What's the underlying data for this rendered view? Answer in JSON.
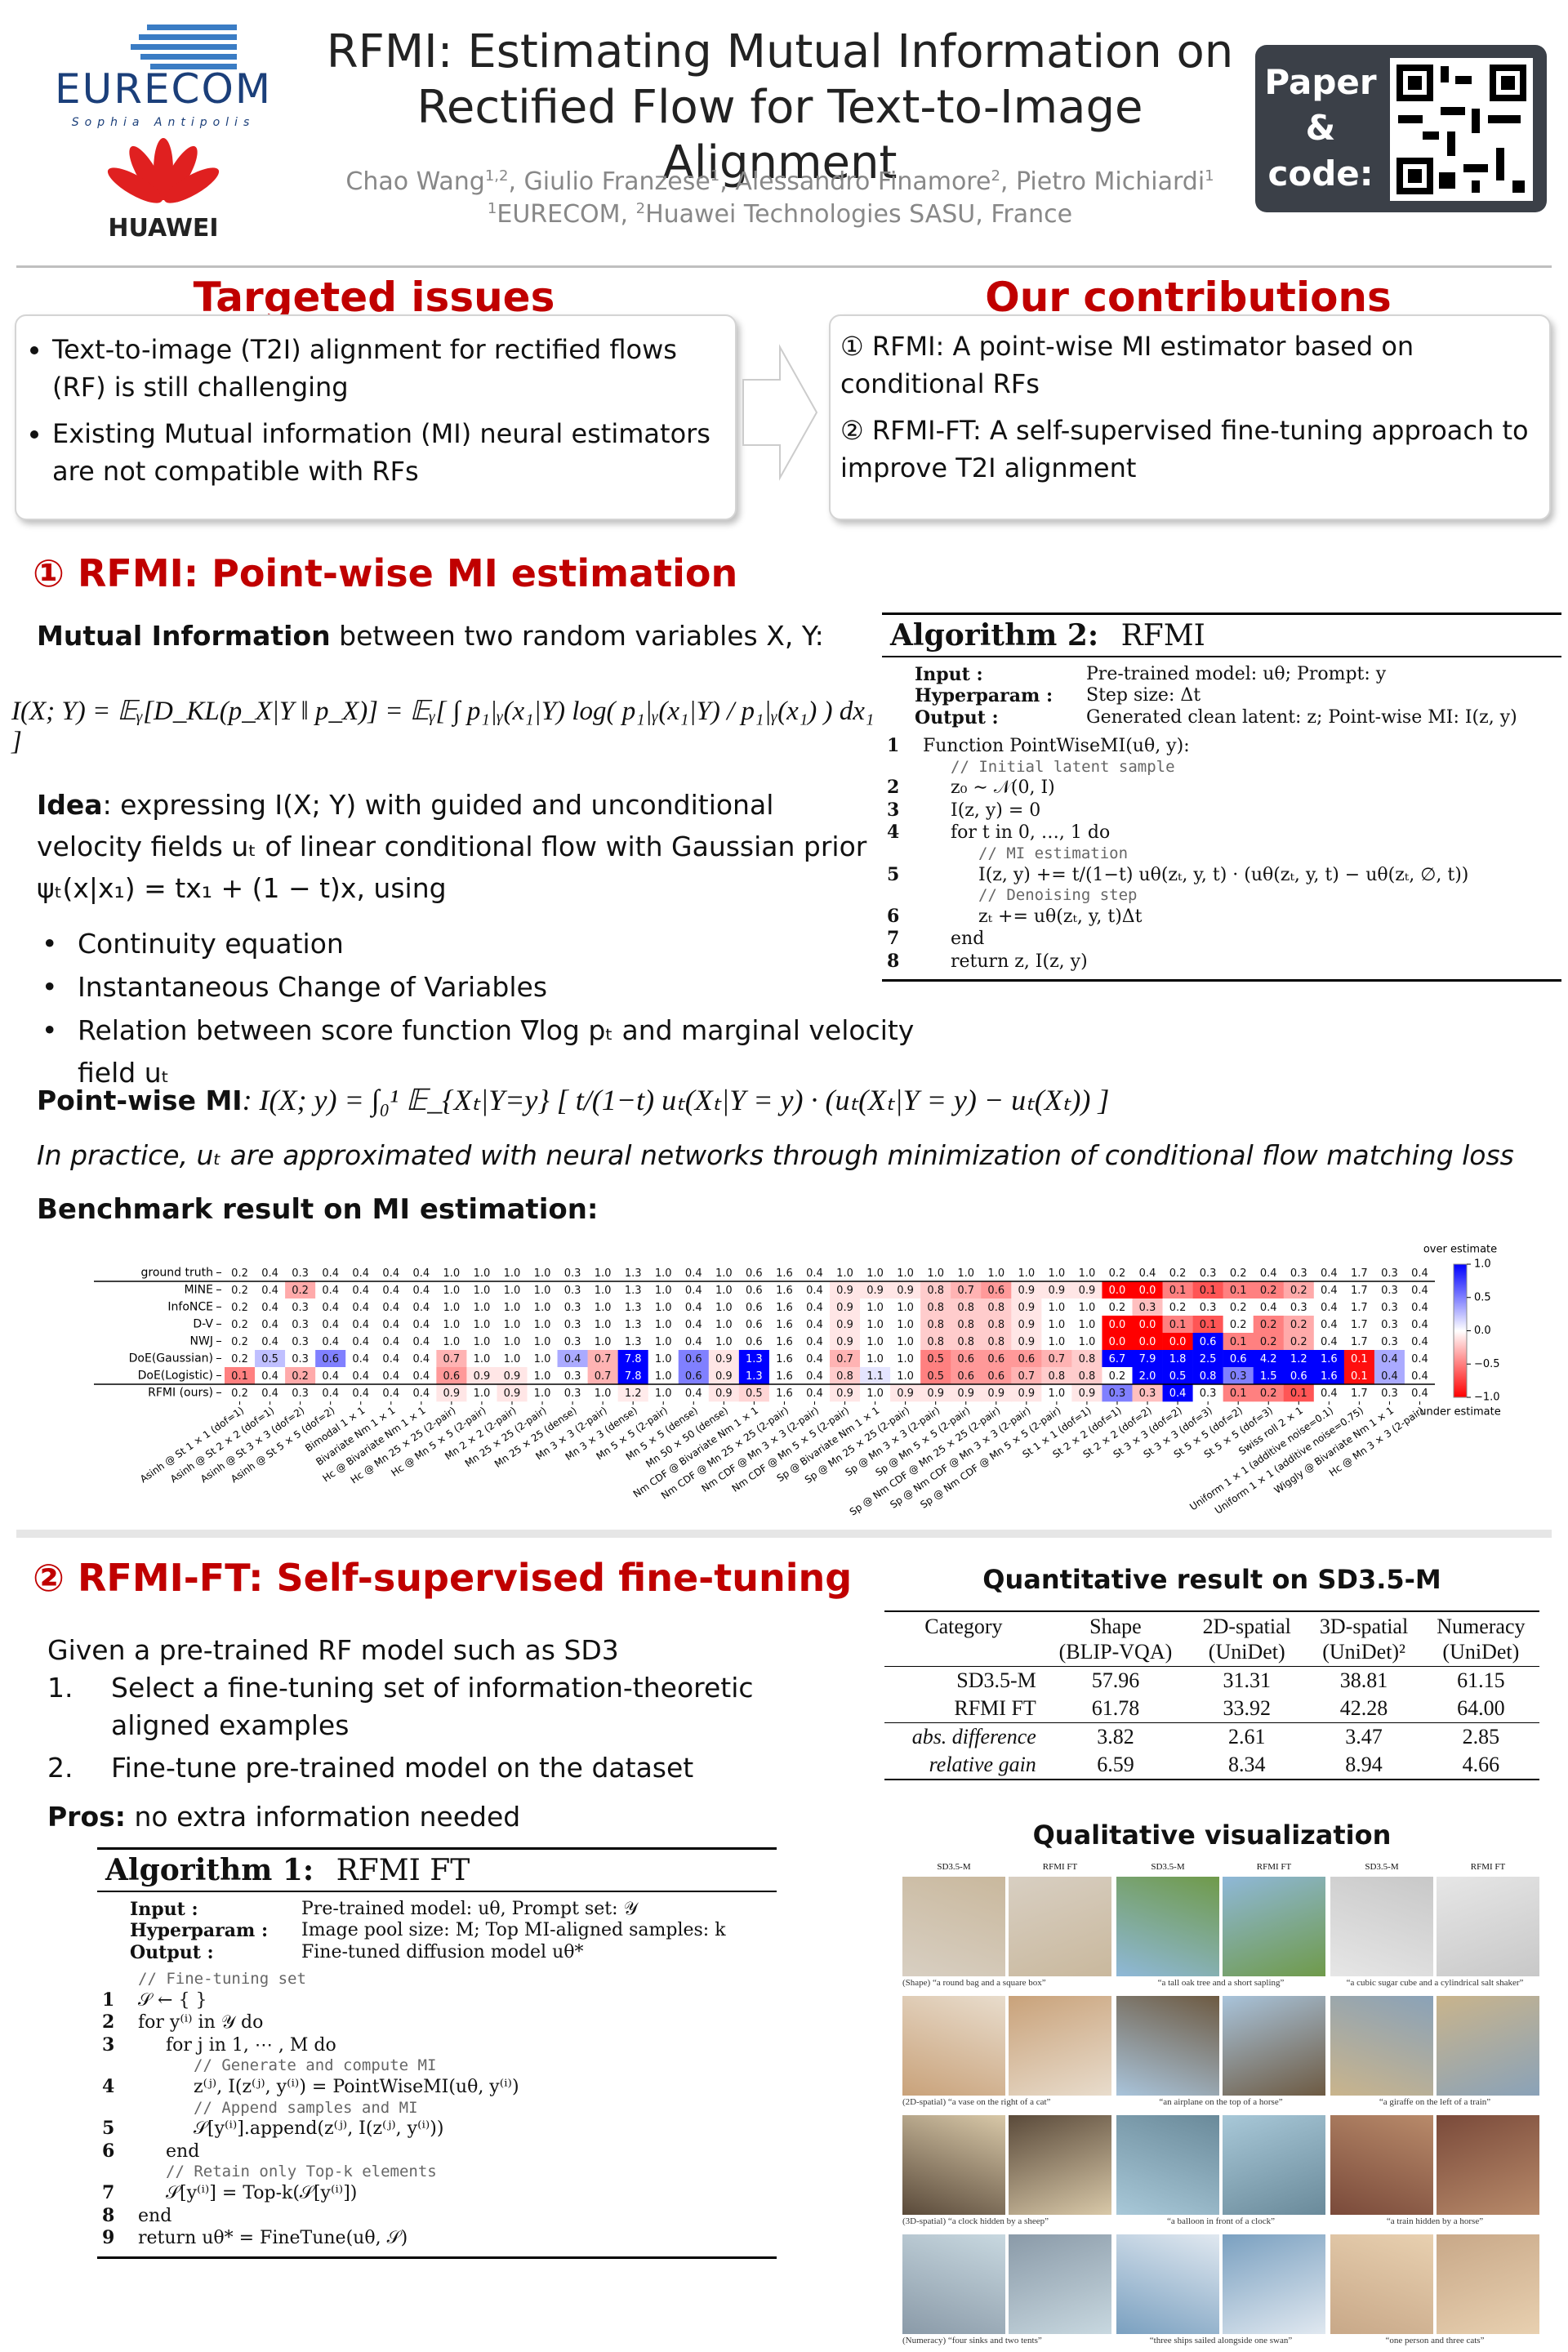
{
  "header": {
    "title_line1": "RFMI: Estimating Mutual Information on",
    "title_line2": "Rectified Flow for Text-to-Image Alignment",
    "logo1": "EURECOM",
    "logo1_sub": "Sophia Antipolis",
    "logo2": "HUAWEI",
    "authors": [
      {
        "name": "Chao Wang",
        "sup": "1,2"
      },
      {
        "name": "Giulio Franzese",
        "sup": "1"
      },
      {
        "name": "Alessandro Finamore",
        "sup": "2"
      },
      {
        "name": "Pietro Michiardi",
        "sup": "1"
      }
    ],
    "affiliations": [
      {
        "sup": "1",
        "name": "EURECOM"
      },
      {
        "sup": "2",
        "name": "Huawei Technologies SASU, France"
      }
    ],
    "qr_label": [
      "Paper",
      "&",
      "code:"
    ]
  },
  "targeted_issues": {
    "title": "Targeted issues",
    "items": [
      "Text-to-image (T2I) alignment for rectified flows (RF) is still challenging",
      "Existing Mutual information (MI) neural estimators are not compatible with RFs"
    ]
  },
  "contributions": {
    "title": "Our contributions",
    "items": [
      {
        "marker": "①",
        "text": "RFMI: A point-wise MI estimator based on conditional RFs"
      },
      {
        "marker": "②",
        "text": "RFMI-FT: A self-supervised fine-tuning approach to improve T2I alignment"
      }
    ]
  },
  "section1": {
    "marker": "①",
    "title": "RFMI: Point-wise MI estimation",
    "mi_def": {
      "bold": "Mutual Information",
      "text": " between two random variables X, Y:"
    },
    "equation": "I(X; Y) = 𝔼ᵧ[D_KL(p_X|Y ‖ p_X)] = 𝔼ᵧ[ ∫ p₁|ᵧ(x₁|Y) log( p₁|ᵧ(x₁|Y) / p₁|ᵧ(x₁) ) dx₁ ]",
    "idea": {
      "bold": "Idea",
      "text": ": expressing I(X; Y) with guided and unconditional velocity fields uₜ of linear conditional flow with Gaussian prior ψₜ(x|x₁) = tx₁ + (1 − t)x, using"
    },
    "bullets": [
      "Continuity equation",
      "Instantaneous Change of Variables",
      "Relation between score function ∇log pₜ and marginal velocity field uₜ"
    ],
    "pointwise": {
      "bold": "Point-wise MI",
      "text": ": I(X; y) = ∫₀¹ 𝔼_{Xₜ|Y=y} [ t/(1−t) uₜ(Xₜ|Y = y) · (uₜ(Xₜ|Y = y) − uₜ(Xₜ)) ]"
    },
    "practice": "In practice, uₜ are approximated with neural networks through minimization of conditional flow matching loss",
    "benchmark_title": "Benchmark result on MI estimation:"
  },
  "algorithm2": {
    "label": "Algorithm 2:",
    "name": "RFMI",
    "io": [
      {
        "key": "Input",
        "text": "Pre-trained model: uθ; Prompt: y"
      },
      {
        "key": "Hyperparam",
        "text": "Step size: Δt"
      },
      {
        "key": "Output",
        "text": "Generated clean latent: z; Point-wise MI: I(z, y)"
      }
    ],
    "lines": [
      {
        "n": "1",
        "text": "Function PointWiseMI(uθ, y):"
      },
      {
        "comment": "// Initial latent sample"
      },
      {
        "n": "2",
        "text": "z₀ ∼ 𝒩(0, I)"
      },
      {
        "n": "3",
        "text": "I(z, y) = 0"
      },
      {
        "n": "4",
        "text": "for t in 0, …, 1 do"
      },
      {
        "comment": "// MI estimation"
      },
      {
        "n": "5",
        "text": "I(z, y) += t/(1−t) uθ(zₜ, y, t) · (uθ(zₜ, y, t) − uθ(zₜ, ∅, t))"
      },
      {
        "comment": "// Denoising step"
      },
      {
        "n": "6",
        "text": "zₜ += uθ(zₜ, y, t)Δt"
      },
      {
        "n": "7",
        "text": "end"
      },
      {
        "n": "8",
        "text": "return z, I(z, y)"
      }
    ]
  },
  "chart_data": {
    "type": "heatmap",
    "categories": [
      "Asinh @ St 1 × 1 (dof=1)",
      "Asinh @ St 2 × 2 (dof=1)",
      "Asinh @ St 3 × 3 (dof=2)",
      "Asinh @ St 5 × 5 (dof=2)",
      "Bimodal 1 × 1",
      "Bivariate Nm 1 × 1",
      "Hc @ Bivariate Nm 1 × 1",
      "Hc @ Mn 25 × 25 (2-pair)",
      "Hc @ Mn 5 × 5 (2-pair)",
      "Mn 2 × 2 (2-pair)",
      "Mn 25 × 25 (2-pair)",
      "Mn 25 × 25 (dense)",
      "Mn 3 × 3 (2-pair)",
      "Mn 3 × 3 (dense)",
      "Mn 5 × 5 (2-pair)",
      "Mn 5 × 5 (dense)",
      "Mn 50 × 50 (dense)",
      "Nm CDF @ Bivariate Nm 1 × 1",
      "Nm CDF @ Mn 25 × 25 (2-pair)",
      "Nm CDF @ Mn 3 × 3 (2-pair)",
      "Nm CDF @ Mn 5 × 5 (2-pair)",
      "Sp @ Bivariate Nm 1 × 1",
      "Sp @ Mn 25 × 25 (2-pair)",
      "Sp @ Mn 3 × 3 (2-pair)",
      "Sp @ Mn 5 × 5 (2-pair)",
      "Sp @ Nm CDF @ Mn 25 × 25 (2-pair)",
      "Sp @ Nm CDF @ Mn 3 × 3 (2-pair)",
      "Sp @ Nm CDF @ Mn 5 × 5 (2-pair)",
      "St 1 × 1 (dof=1)",
      "St 2 × 2 (dof=1)",
      "St 2 × 2 (dof=2)",
      "St 3 × 3 (dof=2)",
      "St 3 × 3 (dof=3)",
      "St 5 × 5 (dof=2)",
      "St 5 × 5 (dof=3)",
      "Swiss roll 2 × 1",
      "Uniform 1 × 1 (additive noise=0.1)",
      "Uniform 1 × 1 (additive noise=0.75)",
      "Wiggly @ Bivariate Nm 1 × 1",
      "Hc @ Mn 3 × 3 (2-pair)"
    ],
    "series": [
      {
        "name": "ground truth",
        "values": [
          0.2,
          0.4,
          0.3,
          0.4,
          0.4,
          0.4,
          0.4,
          1.0,
          1.0,
          1.0,
          1.0,
          0.3,
          1.0,
          1.3,
          1.0,
          0.4,
          1.0,
          0.6,
          1.6,
          0.4,
          1.0,
          1.0,
          1.0,
          1.0,
          1.0,
          1.0,
          1.0,
          1.0,
          1.0,
          0.2,
          0.4,
          0.2,
          0.3,
          0.2,
          0.4,
          0.3,
          0.4,
          1.7,
          0.3,
          0.4
        ],
        "value_labels": [
          "0.2",
          "0.4",
          "0.3",
          "0.4",
          "0.4",
          "0.4",
          "0.4",
          "1.0",
          "1.0",
          "1.0",
          "1.0",
          "0.3",
          "1.0",
          "1.3",
          "1.0",
          "0.4",
          "1.0",
          "0.6",
          "1.6",
          "0.4",
          "1.0",
          "1.0",
          "1.0",
          "1.0",
          "1.0",
          "1.0",
          "1.0",
          "1.0",
          "1.0",
          "0.2",
          "0.4",
          "0.2",
          "0.3",
          "0.2",
          "0.4",
          "0.3",
          "0.4",
          "1.7",
          "0.3",
          "0.4"
        ]
      },
      {
        "name": "MINE",
        "values": [
          0.2,
          0.4,
          0.2,
          0.4,
          0.4,
          0.4,
          0.4,
          1.0,
          1.0,
          1.0,
          1.0,
          0.3,
          1.0,
          1.3,
          1.0,
          0.4,
          1.0,
          0.6,
          1.6,
          0.4,
          0.9,
          0.9,
          0.9,
          0.8,
          0.7,
          0.6,
          0.9,
          0.9,
          0.9,
          0.0,
          0.0,
          0.1,
          0.1,
          0.1,
          0.2,
          0.2,
          0.4,
          1.7,
          0.3,
          0.4
        ],
        "value_labels": [
          "0.2",
          "0.4",
          "0.2",
          "0.4",
          "0.4",
          "0.4",
          "0.4",
          "1.0",
          "1.0",
          "1.0",
          "1.0",
          "0.3",
          "1.0",
          "1.3",
          "1.0",
          "0.4",
          "1.0",
          "0.6",
          "1.6",
          "0.4",
          "0.9",
          "0.9",
          "0.9",
          "0.8",
          "0.7",
          "0.6",
          "0.9",
          "0.9",
          "0.9",
          "0.0",
          "0.0",
          "0.1",
          "0.1",
          "0.1",
          "0.2",
          "0.2",
          "0.4",
          "1.7",
          "0.3",
          "0.4"
        ]
      },
      {
        "name": "InfoNCE",
        "values": [
          0.2,
          0.4,
          0.3,
          0.4,
          0.4,
          0.4,
          0.4,
          1.0,
          1.0,
          1.0,
          1.0,
          0.3,
          1.0,
          1.3,
          1.0,
          0.4,
          1.0,
          0.6,
          1.6,
          0.4,
          0.9,
          1.0,
          1.0,
          0.8,
          0.8,
          0.8,
          0.9,
          1.0,
          1.0,
          0.2,
          0.3,
          0.2,
          0.3,
          0.2,
          0.4,
          0.3,
          0.4,
          1.7,
          0.3,
          0.4
        ],
        "value_labels": [
          "0.2",
          "0.4",
          "0.3",
          "0.4",
          "0.4",
          "0.4",
          "0.4",
          "1.0",
          "1.0",
          "1.0",
          "1.0",
          "0.3",
          "1.0",
          "1.3",
          "1.0",
          "0.4",
          "1.0",
          "0.6",
          "1.6",
          "0.4",
          "0.9",
          "1.0",
          "1.0",
          "0.8",
          "0.8",
          "0.8",
          "0.9",
          "1.0",
          "1.0",
          "0.2",
          "0.3",
          "0.2",
          "0.3",
          "0.2",
          "0.4",
          "0.3",
          "0.4",
          "1.7",
          "0.3",
          "0.4"
        ]
      },
      {
        "name": "D-V",
        "values": [
          0.2,
          0.4,
          0.3,
          0.4,
          0.4,
          0.4,
          0.4,
          1.0,
          1.0,
          1.0,
          1.0,
          0.3,
          1.0,
          1.3,
          1.0,
          0.4,
          1.0,
          0.6,
          1.6,
          0.4,
          0.9,
          1.0,
          1.0,
          0.8,
          0.8,
          0.8,
          0.9,
          1.0,
          1.0,
          0.0,
          0.0,
          0.1,
          0.1,
          0.2,
          0.2,
          0.2,
          0.4,
          1.7,
          0.3,
          0.4
        ],
        "value_labels": [
          "0.2",
          "0.4",
          "0.3",
          "0.4",
          "0.4",
          "0.4",
          "0.4",
          "1.0",
          "1.0",
          "1.0",
          "1.0",
          "0.3",
          "1.0",
          "1.3",
          "1.0",
          "0.4",
          "1.0",
          "0.6",
          "1.6",
          "0.4",
          "0.9",
          "1.0",
          "1.0",
          "0.8",
          "0.8",
          "0.8",
          "0.9",
          "1.0",
          "1.0",
          "0.0",
          "0.0",
          "0.1",
          "0.1",
          "0.2",
          "0.2",
          "0.2",
          "0.4",
          "1.7",
          "0.3",
          "0.4"
        ]
      },
      {
        "name": "NWJ",
        "values": [
          0.2,
          0.4,
          0.3,
          0.4,
          0.4,
          0.4,
          0.4,
          1.0,
          1.0,
          1.0,
          1.0,
          0.3,
          1.0,
          1.3,
          1.0,
          0.4,
          1.0,
          0.6,
          1.6,
          0.4,
          0.9,
          1.0,
          1.0,
          0.8,
          0.8,
          0.8,
          0.9,
          1.0,
          1.0,
          0.0,
          0.0,
          0.0,
          0.6,
          0.1,
          0.2,
          0.2,
          0.4,
          1.7,
          0.3,
          0.4
        ],
        "value_labels": [
          "0.2",
          "0.4",
          "0.3",
          "0.4",
          "0.4",
          "0.4",
          "0.4",
          "1.0",
          "1.0",
          "1.0",
          "1.0",
          "0.3",
          "1.0",
          "1.3",
          "1.0",
          "0.4",
          "1.0",
          "0.6",
          "1.6",
          "0.4",
          "0.9",
          "1.0",
          "1.0",
          "0.8",
          "0.8",
          "0.8",
          "0.9",
          "1.0",
          "1.0",
          "0.0",
          "0.0",
          "0.0",
          "0.6",
          "0.1",
          "0.2",
          "0.2",
          "0.4",
          "1.7",
          "0.3",
          "0.4"
        ]
      },
      {
        "name": "DoE(Gaussian)",
        "values": [
          0.2,
          0.5,
          0.3,
          0.6,
          0.4,
          0.4,
          0.4,
          0.7,
          1.0,
          1.0,
          1.0,
          0.4,
          0.7,
          7.8,
          1.0,
          0.6,
          0.9,
          1.3,
          1.6,
          0.4,
          0.7,
          1.0,
          1.0,
          0.5,
          0.6,
          0.6,
          0.6,
          0.7,
          0.8,
          6.7,
          7.9,
          1.8,
          2.5,
          0.6,
          4.2,
          1.2,
          1.6,
          0.1,
          0.4,
          0.4
        ],
        "value_labels": [
          "0.2",
          "0.5",
          "0.3",
          "0.6",
          "0.4",
          "0.4",
          "0.4",
          "0.7",
          "1.0",
          "1.0",
          "1.0",
          "0.4",
          "0.7",
          "7.8",
          "1.0",
          "0.6",
          "0.9",
          "1.3",
          "1.6",
          "0.4",
          "0.7",
          "1.0",
          "1.0",
          "0.5",
          "0.6",
          "0.6",
          "0.6",
          "0.7",
          "0.8",
          "6.7",
          "7.9",
          "1.8",
          "2.5",
          "0.6",
          "4.2",
          "1.2",
          "1.6",
          "0.1",
          "0.4",
          "0.4"
        ]
      },
      {
        "name": "DoE(Logistic)",
        "values": [
          0.1,
          0.4,
          0.2,
          0.4,
          0.4,
          0.4,
          0.4,
          0.6,
          0.9,
          0.9,
          1.0,
          0.3,
          0.7,
          7.8,
          1.0,
          0.6,
          0.9,
          1.3,
          1.6,
          0.4,
          0.8,
          1.1,
          1.0,
          0.5,
          0.6,
          0.6,
          0.7,
          0.8,
          0.8,
          0.2,
          2.0,
          0.5,
          0.8,
          0.3,
          1.5,
          0.6,
          1.6,
          0.1,
          0.4,
          0.4
        ],
        "value_labels": [
          "0.1",
          "0.4",
          "0.2",
          "0.4",
          "0.4",
          "0.4",
          "0.4",
          "0.6",
          "0.9",
          "0.9",
          "1.0",
          "0.3",
          "0.7",
          "7.8",
          "1.0",
          "0.6",
          "0.9",
          "1.3",
          "1.6",
          "0.4",
          "0.8",
          "1.1",
          "1.0",
          "0.5",
          "0.6",
          "0.6",
          "0.7",
          "0.8",
          "0.8",
          "0.2",
          "2.0",
          "0.5",
          "0.8",
          "0.3",
          "1.5",
          "0.6",
          "1.6",
          "0.1",
          "0.4",
          "0.4"
        ]
      },
      {
        "name": "RFMI (ours)",
        "values": [
          0.2,
          0.4,
          0.3,
          0.4,
          0.4,
          0.4,
          0.4,
          0.9,
          1.0,
          0.9,
          1.0,
          0.3,
          1.0,
          1.2,
          1.0,
          0.4,
          0.9,
          0.5,
          1.6,
          0.4,
          0.9,
          1.0,
          0.9,
          0.9,
          0.9,
          0.9,
          0.9,
          1.0,
          0.9,
          0.3,
          0.3,
          0.4,
          0.3,
          0.1,
          0.2,
          0.1,
          0.4,
          1.7,
          0.3,
          0.4
        ],
        "value_labels": [
          "0.2",
          "0.4",
          "0.3",
          "0.4",
          "0.4",
          "0.4",
          "0.4",
          "0.9",
          "1.0",
          "0.9",
          "1.0",
          "0.3",
          "1.0",
          "1.2",
          "1.0",
          "0.4",
          "0.9",
          "0.5",
          "1.6",
          "0.4",
          "0.9",
          "1.0",
          "0.9",
          "0.9",
          "0.9",
          "0.9",
          "0.9",
          "1.0",
          "0.9",
          "0.3",
          "0.3",
          "0.4",
          "0.3",
          "0.1",
          "0.2",
          "0.1",
          "0.4",
          "1.7",
          "0.3",
          "0.4"
        ]
      }
    ],
    "colors": {
      "over": "#0000ff",
      "center": "#ffffff",
      "under": "#ff0000"
    },
    "clim": [
      -1,
      1
    ],
    "cticks": [
      {
        "value": 1,
        "label": "1.0"
      },
      0.5,
      {
        "value": 0,
        "label": "0.0"
      },
      {
        "value": -0.5,
        "label": "−0.5"
      },
      {
        "value": -1,
        "label": "−1.0"
      }
    ],
    "colorbar_top": "over estimate",
    "colorbar_bottom": "under estimate"
  },
  "section2": {
    "marker": "②",
    "title": "RFMI-FT: Self-supervised fine-tuning",
    "intro": "Given a pre-trained RF model such as SD3",
    "steps": [
      {
        "n": "1.",
        "text": "Select a fine-tuning set of information-theoretic aligned examples"
      },
      {
        "n": "2.",
        "text": "Fine-tune pre-trained model on the dataset"
      }
    ],
    "pros": {
      "bold": "Pros:",
      "text": " no extra information needed"
    }
  },
  "algorithm1": {
    "label": "Algorithm 1:",
    "name": "RFMI FT",
    "io": [
      {
        "key": "Input",
        "text": "Pre-trained model: uθ, Prompt set: 𝒴"
      },
      {
        "key": "Hyperparam",
        "text": "Image pool size: M; Top MI-aligned samples: k"
      },
      {
        "key": "Output",
        "text": "Fine-tuned diffusion model uθ*"
      }
    ],
    "lines": [
      {
        "comment": "// Fine-tuning set"
      },
      {
        "n": "1",
        "text": "𝒮 ← { }"
      },
      {
        "n": "2",
        "text": "for y⁽ⁱ⁾ in 𝒴 do"
      },
      {
        "n": "3",
        "text": "for j in 1, ⋯ , M do"
      },
      {
        "comment": "// Generate and compute MI"
      },
      {
        "n": "4",
        "text": "z⁽ʲ⁾, I(z⁽ʲ⁾, y⁽ⁱ⁾) = PointWiseMI(uθ, y⁽ⁱ⁾)"
      },
      {
        "comment": "// Append samples and MI"
      },
      {
        "n": "5",
        "text": "𝒮[y⁽ⁱ⁾].append(z⁽ʲ⁾, I(z⁽ʲ⁾, y⁽ⁱ⁾))"
      },
      {
        "n": "6",
        "text": "end"
      },
      {
        "comment": "// Retain only Top-k elements"
      },
      {
        "n": "7",
        "text": "𝒮[y⁽ⁱ⁾] = Top-k(𝒮[y⁽ⁱ⁾])"
      },
      {
        "n": "8",
        "text": "end"
      },
      {
        "n": "9",
        "text": "return uθ* = FineTune(uθ, 𝒮)"
      }
    ]
  },
  "quantitative": {
    "title": "Quantitative result on SD3.5-M",
    "header": [
      [
        "Category"
      ],
      [
        "Shape",
        "(BLIP-VQA)"
      ],
      [
        "2D-spatial",
        "(UniDet)"
      ],
      [
        "3D-spatial",
        "(UniDet)²"
      ],
      [
        "Numeracy",
        "(UniDet)"
      ]
    ],
    "rows": [
      [
        "SD3.5-M",
        "57.96",
        "31.31",
        "38.81",
        "61.15"
      ],
      [
        "RFMI FT",
        "61.78",
        "33.92",
        "42.28",
        "64.00"
      ],
      [
        "abs. difference",
        "3.82",
        "2.61",
        "3.47",
        "2.85"
      ],
      [
        "relative gain",
        "6.59",
        "8.34",
        "8.94",
        "4.66"
      ]
    ]
  },
  "qualitative": {
    "title": "Qualitative visualization",
    "column_headers": [
      "SD3.5-M",
      "RFMI FT"
    ],
    "captions": [
      [
        "(Shape) “a round bag and a square box”",
        "“a tall oak tree and a short sapling”",
        "“a cubic sugar cube and a cylindrical salt shaker”"
      ],
      [
        "(2D-spatial) “a vase on the right of a cat”",
        "“an airplane on the top of a horse”",
        "“a giraffe on the left of a train”"
      ],
      [
        "(3D-spatial) “a clock hidden by a sheep”",
        "“a balloon in front of a clock”",
        "“a train hidden by a horse”"
      ],
      [
        "(Numeracy) “four sinks and two tents”",
        "“three ships sailed alongside one swan”",
        "“one person and three cats”"
      ]
    ]
  }
}
